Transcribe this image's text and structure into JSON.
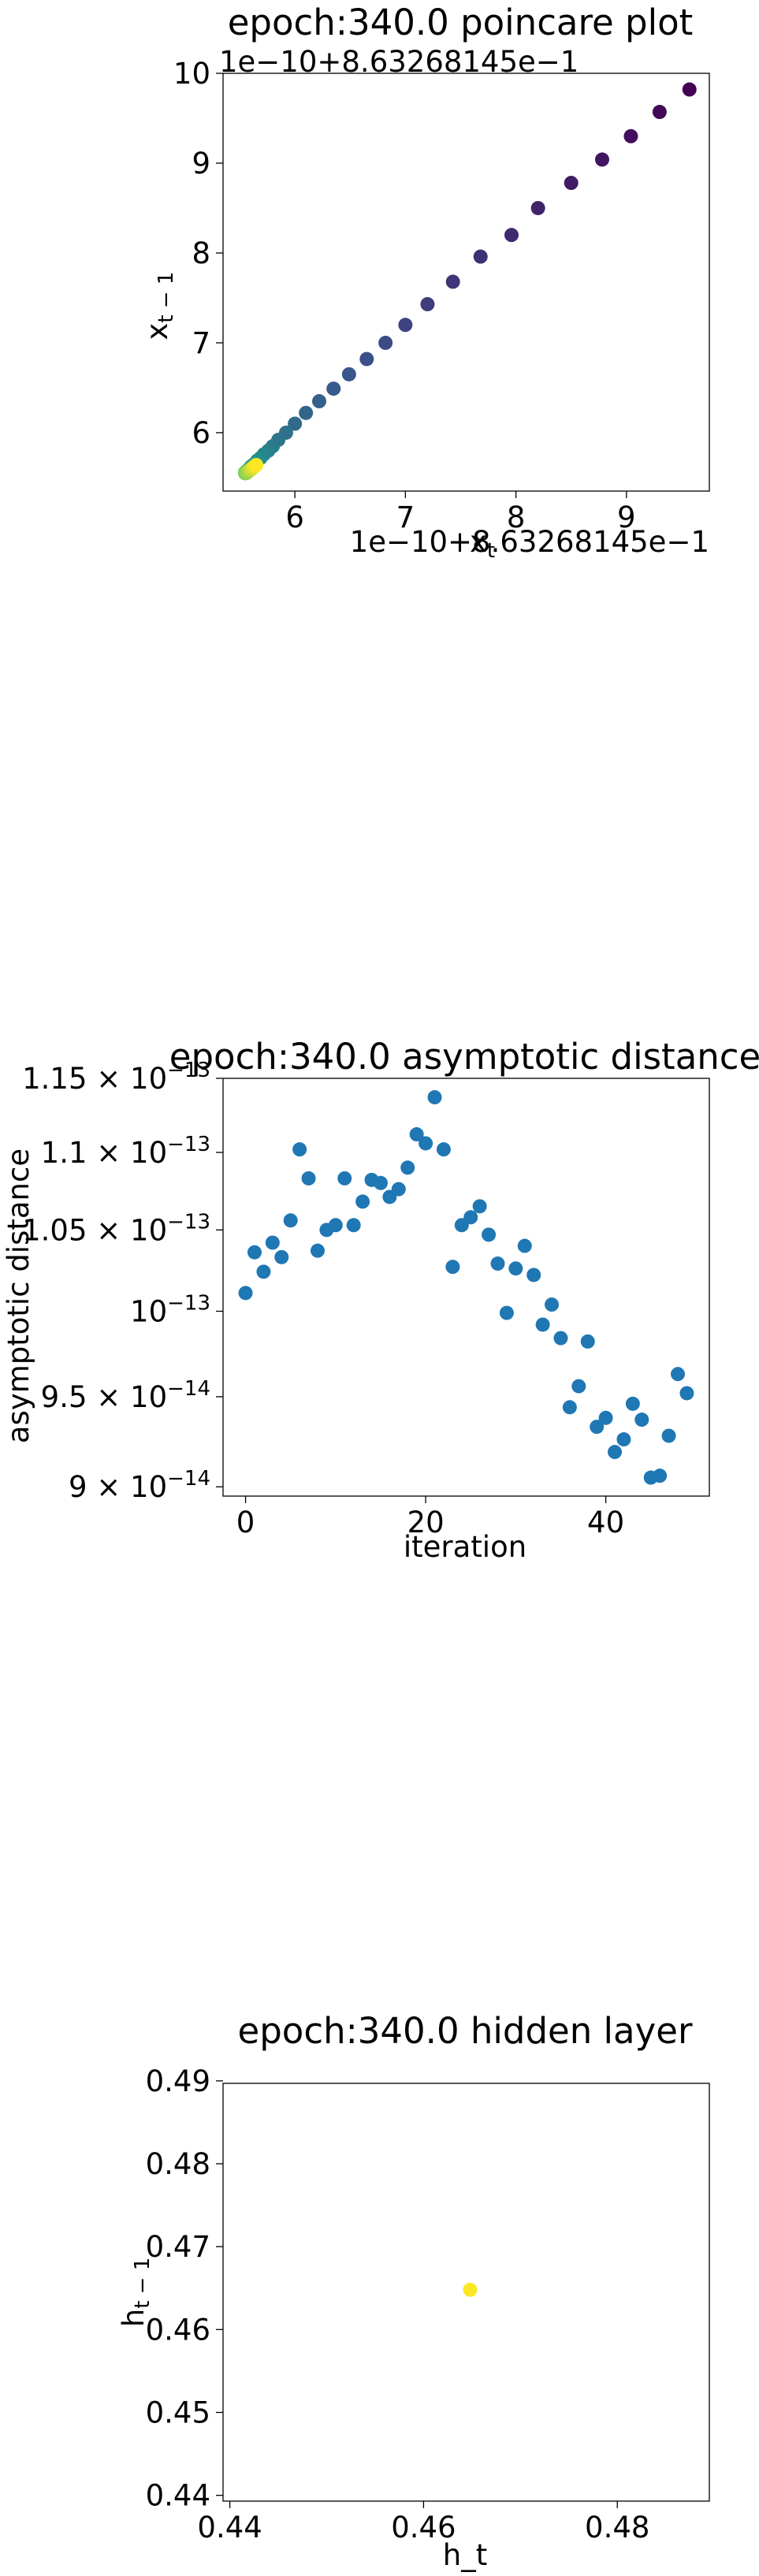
{
  "chart_data": [
    {
      "type": "scatter",
      "title": "epoch:340.0 poincare plot",
      "xlabel": "x_t",
      "ylabel": "x_{t-1}",
      "x_offset_label": "1e−10+8.63268145e−1",
      "y_offset_label": "1e−10+8.63268145e−1",
      "xlim": [
        5.35,
        9.75
      ],
      "ylim": [
        5.35,
        10.0
      ],
      "xticks": [
        "6",
        "7",
        "8",
        "9"
      ],
      "yticks": [
        "6",
        "7",
        "8",
        "9",
        "10"
      ],
      "xtick_values": [
        6,
        7,
        8,
        9
      ],
      "ytick_values": [
        6,
        7,
        8,
        9,
        10
      ],
      "colormap": "viridis",
      "colormap_colors": [
        "#440154",
        "#3b528b",
        "#21918c",
        "#5ec962",
        "#fde725"
      ],
      "grid": false,
      "points": {
        "x": [
          9.57,
          9.3,
          9.04,
          8.78,
          8.5,
          8.2,
          7.96,
          7.68,
          7.43,
          7.2,
          7.0,
          6.82,
          6.65,
          6.49,
          6.35,
          6.22,
          6.1,
          6.0,
          5.92,
          5.85,
          5.8,
          5.76,
          5.72,
          5.69,
          5.66,
          5.64,
          5.62,
          5.6,
          5.59,
          5.58,
          5.57,
          5.57,
          5.56,
          5.56,
          5.56,
          5.55,
          5.55,
          5.55,
          5.55,
          5.55,
          5.56,
          5.57,
          5.58,
          5.59,
          5.6,
          5.61,
          5.62,
          5.63,
          5.64,
          5.65
        ],
        "y": [
          9.82,
          9.57,
          9.3,
          9.04,
          8.78,
          8.5,
          8.2,
          7.96,
          7.68,
          7.43,
          7.2,
          7.0,
          6.82,
          6.65,
          6.49,
          6.35,
          6.22,
          6.1,
          6.0,
          5.92,
          5.85,
          5.8,
          5.76,
          5.72,
          5.69,
          5.66,
          5.64,
          5.62,
          5.6,
          5.59,
          5.58,
          5.57,
          5.57,
          5.56,
          5.56,
          5.56,
          5.55,
          5.55,
          5.55,
          5.55,
          5.55,
          5.56,
          5.57,
          5.58,
          5.59,
          5.6,
          5.61,
          5.62,
          5.63,
          5.64
        ]
      }
    },
    {
      "type": "scatter",
      "title": "epoch:340.0 asymptotic distance",
      "xlabel": "iteration",
      "ylabel": "asymptotic distance",
      "y_scale": "log",
      "xlim": [
        -2.5,
        51.5
      ],
      "ylim": [
        8.95e-14,
        1.15e-13
      ],
      "xticks": [
        "0",
        "20",
        "40"
      ],
      "xtick_values": [
        0,
        20,
        40
      ],
      "ytick_values": [
        9e-14,
        9.5e-14,
        1e-13,
        1.05e-13,
        1.1e-13,
        1.15e-13
      ],
      "ytick_labels": [
        {
          "mant": "9",
          "times": "×",
          "base": "10",
          "exp": "−14"
        },
        {
          "mant": "9.5",
          "times": "×",
          "base": "10",
          "exp": "−14"
        },
        {
          "mant": "",
          "times": "",
          "base": "10",
          "exp": "−13"
        },
        {
          "mant": "1.05",
          "times": "×",
          "base": "10",
          "exp": "−13"
        },
        {
          "mant": "1.1",
          "times": "×",
          "base": "10",
          "exp": "−13"
        },
        {
          "mant": "1.15",
          "times": "×",
          "base": "10",
          "exp": "−13"
        }
      ],
      "marker_color": "#1f77b4",
      "grid": false,
      "points": {
        "x": [
          0,
          1,
          2,
          3,
          4,
          5,
          6,
          7,
          8,
          9,
          10,
          11,
          12,
          13,
          14,
          15,
          16,
          17,
          18,
          19,
          20,
          21,
          22,
          23,
          24,
          25,
          26,
          27,
          28,
          29,
          30,
          31,
          32,
          33,
          34,
          35,
          36,
          37,
          38,
          39,
          40,
          41,
          42,
          43,
          44,
          45,
          46,
          47,
          48,
          49
        ],
        "y": [
          1.011e-13,
          1.036e-13,
          1.024e-13,
          1.042e-13,
          1.033e-13,
          1.056e-13,
          1.102e-13,
          1.083e-13,
          1.037e-13,
          1.05e-13,
          1.053e-13,
          1.083e-13,
          1.053e-13,
          1.068e-13,
          1.082e-13,
          1.08e-13,
          1.071e-13,
          1.076e-13,
          1.09e-13,
          1.112e-13,
          1.106e-13,
          1.137e-13,
          1.102e-13,
          1.027e-13,
          1.053e-13,
          1.058e-13,
          1.065e-13,
          1.047e-13,
          1.029e-13,
          9.99e-14,
          1.026e-13,
          1.04e-13,
          1.022e-13,
          9.92e-14,
          1.004e-13,
          9.84e-14,
          9.44e-14,
          9.56e-14,
          9.82e-14,
          9.33e-14,
          9.38e-14,
          9.19e-14,
          9.26e-14,
          9.46e-14,
          9.37e-14,
          9.05e-14,
          9.06e-14,
          9.28e-14,
          9.63e-14,
          9.52e-14
        ]
      }
    },
    {
      "type": "scatter",
      "title": "epoch:340.0 hidden layer",
      "xlabel": "h_t",
      "ylabel": "h_{t-1}",
      "xlim": [
        0.4393,
        0.4895
      ],
      "ylim": [
        0.4393,
        0.4897
      ],
      "xticks": [
        "0.44",
        "0.46",
        "0.48"
      ],
      "yticks": [
        "0.44",
        "0.45",
        "0.46",
        "0.47",
        "0.48",
        "0.49"
      ],
      "xtick_values": [
        0.44,
        0.46,
        0.48
      ],
      "ytick_values": [
        0.44,
        0.45,
        0.46,
        0.47,
        0.48,
        0.49
      ],
      "marker_color": "#fde725",
      "grid": false,
      "points": {
        "x": [
          0.4648
        ],
        "y": [
          0.4648
        ]
      }
    }
  ]
}
